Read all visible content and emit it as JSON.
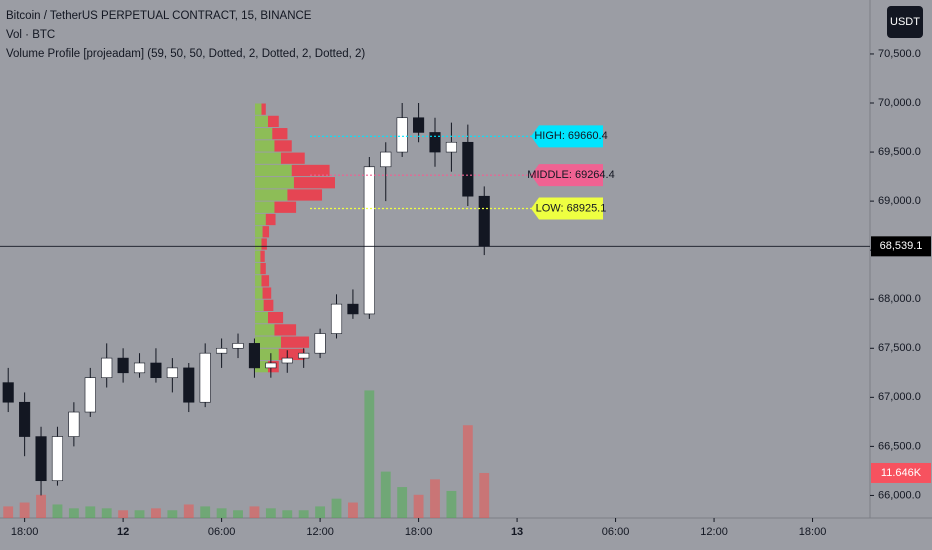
{
  "chart_data": {
    "type": "candlestick",
    "title": "Bitcoin / TetherUS PERPETUAL CONTRACT, 15, BINANCE",
    "indicators": [
      "Vol · BTC",
      "Volume Profile [projeadam] (59, 50, 50, Dotted, 2, Dotted, 2, Dotted, 2)"
    ],
    "currency": "USDT",
    "x": [
      17,
      18,
      19,
      20,
      21,
      22,
      23,
      24,
      25,
      26,
      27,
      28,
      29,
      30,
      31,
      32,
      33,
      34,
      35,
      36,
      37,
      38,
      39,
      40,
      41,
      42,
      43,
      44,
      45,
      46
    ],
    "open": [
      67150,
      66950,
      66600,
      66150,
      66600,
      66850,
      67200,
      67400,
      67250,
      67350,
      67200,
      67300,
      66950,
      67450,
      67500,
      67550,
      67300,
      67350,
      67400,
      67450,
      67650,
      67950,
      67850,
      69350,
      69500,
      69850,
      69700,
      69500,
      69600,
      69050
    ],
    "high": [
      67300,
      67050,
      66700,
      66700,
      66950,
      67300,
      67550,
      67500,
      67450,
      67500,
      67400,
      67350,
      67550,
      67600,
      67650,
      67600,
      67450,
      67480,
      67500,
      67700,
      68050,
      68100,
      69450,
      69600,
      70000,
      70000,
      69850,
      69800,
      69780,
      69150
    ],
    "low": [
      66850,
      66400,
      66000,
      66100,
      66500,
      66800,
      67100,
      67150,
      67200,
      67150,
      67050,
      66850,
      66900,
      67300,
      67400,
      67200,
      67200,
      67250,
      67300,
      67400,
      67600,
      67800,
      67800,
      69000,
      69450,
      69600,
      69350,
      69300,
      68950,
      68450
    ],
    "close": [
      66950,
      66600,
      66150,
      66600,
      66850,
      67200,
      67400,
      67250,
      67350,
      67200,
      67300,
      66950,
      67450,
      67500,
      67550,
      67300,
      67350,
      67400,
      67450,
      67650,
      67950,
      67850,
      69350,
      69500,
      69850,
      69700,
      69500,
      69600,
      69050,
      68539.1
    ],
    "up_color": "#ffffff",
    "down_color": "#131722",
    "volume": {
      "values": [
        3000,
        4000,
        6000,
        3500,
        2500,
        3000,
        2500,
        2000,
        2000,
        2500,
        2000,
        3500,
        3000,
        2500,
        2000,
        3000,
        2500,
        2000,
        2000,
        3000,
        5000,
        4000,
        33000,
        12000,
        8000,
        6000,
        10000,
        7000,
        24000,
        11646
      ],
      "axis": "y2",
      "up_color": "#4caf50",
      "down_color": "#ef5350"
    },
    "xlim": [
      16.5,
      69.5
    ],
    "xticks": [
      {
        "value": 18,
        "label": "18:00"
      },
      {
        "value": 24,
        "label": "12"
      },
      {
        "value": 30,
        "label": "06:00"
      },
      {
        "value": 36,
        "label": "12:00"
      },
      {
        "value": 42,
        "label": "18:00"
      },
      {
        "value": 48,
        "label": "13"
      },
      {
        "value": 54,
        "label": "06:00"
      },
      {
        "value": 60,
        "label": "12:00"
      },
      {
        "value": 66,
        "label": "18:00"
      }
    ],
    "ylim": [
      65770,
      71050
    ],
    "yticks": [
      {
        "value": 66000,
        "label": "66,000.0"
      },
      {
        "value": 66500,
        "label": "66,500.0"
      },
      {
        "value": 67000,
        "label": "67,000.0"
      },
      {
        "value": 67500,
        "label": "67,500.0"
      },
      {
        "value": 68000,
        "label": "68,000.0"
      },
      {
        "value": 68500,
        "label": "68,500.0"
      },
      {
        "value": 69000,
        "label": "69,000.0"
      },
      {
        "value": 69500,
        "label": "69,500.0"
      },
      {
        "value": 70000,
        "label": "70,000.0"
      },
      {
        "value": 70500,
        "label": "70,500.0"
      }
    ],
    "y2lim": [
      0,
      134000
    ],
    "last_price": {
      "value": 68539.1,
      "label": "68,539.1"
    },
    "last_volume": {
      "value": 11646,
      "label": "11.646K"
    },
    "volume_profile": {
      "bins": [
        67250,
        67375,
        67500,
        67625,
        67750,
        67875,
        68000,
        68125,
        68250,
        68375,
        68500,
        68625,
        68750,
        68875,
        69000,
        69125,
        69250,
        69375,
        69500,
        69625,
        69750,
        69875,
        70000
      ],
      "buy": [
        60,
        110,
        120,
        90,
        60,
        40,
        35,
        30,
        25,
        25,
        30,
        35,
        50,
        90,
        150,
        180,
        170,
        120,
        90,
        80,
        60,
        30
      ],
      "sell": [
        50,
        120,
        130,
        100,
        70,
        45,
        40,
        35,
        25,
        20,
        25,
        30,
        45,
        100,
        160,
        190,
        175,
        110,
        80,
        70,
        50,
        20
      ],
      "buy_color": "#8bc34a",
      "sell_color": "#f23645"
    },
    "levels": [
      {
        "label": "HIGH: 69660.4",
        "value": 69660.4,
        "color": "#00e5ff"
      },
      {
        "label": "MIDDLE: 69264.4",
        "value": 69264.4,
        "color": "#f06292"
      },
      {
        "label": "LOW: 68925.1",
        "value": 68925.1,
        "color": "#eeff41"
      }
    ]
  }
}
